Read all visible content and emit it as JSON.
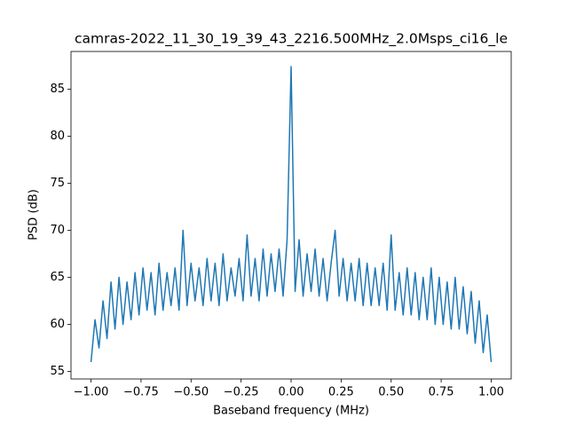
{
  "chart_data": {
    "type": "line",
    "title": "camras-2022_11_30_19_39_43_2216.500MHz_2.0Msps_ci16_le",
    "xlabel": "Baseband frequency (MHz)",
    "ylabel": "PSD (dB)",
    "x": [
      -1.0,
      -0.98,
      -0.96,
      -0.94,
      -0.92,
      -0.9,
      -0.88,
      -0.86,
      -0.84,
      -0.82,
      -0.8,
      -0.78,
      -0.76,
      -0.74,
      -0.72,
      -0.7,
      -0.68,
      -0.66,
      -0.64,
      -0.62,
      -0.6,
      -0.58,
      -0.56,
      -0.54,
      -0.52,
      -0.5,
      -0.48,
      -0.46,
      -0.44,
      -0.42,
      -0.4,
      -0.38,
      -0.36,
      -0.34,
      -0.32,
      -0.3,
      -0.28,
      -0.26,
      -0.24,
      -0.22,
      -0.2,
      -0.18,
      -0.16,
      -0.14,
      -0.12,
      -0.1,
      -0.08,
      -0.06,
      -0.04,
      -0.02,
      0,
      0.02,
      0.04,
      0.06,
      0.08,
      0.1,
      0.12,
      0.14,
      0.16,
      0.18,
      0.2,
      0.22,
      0.24,
      0.26,
      0.28,
      0.3,
      0.32,
      0.34,
      0.36,
      0.38,
      0.4,
      0.42,
      0.44,
      0.46,
      0.48,
      0.5,
      0.52,
      0.54,
      0.56,
      0.58,
      0.6,
      0.62,
      0.64,
      0.66,
      0.68,
      0.7,
      0.72,
      0.74,
      0.76,
      0.78,
      0.8,
      0.82,
      0.84,
      0.86,
      0.88,
      0.9,
      0.92,
      0.94,
      0.96,
      0.98,
      1.0
    ],
    "series": [
      {
        "color": "#1f77b4",
        "values": [
          56.0,
          60.5,
          57.5,
          62.5,
          58.5,
          64.5,
          59.5,
          65.0,
          60.0,
          64.5,
          60.5,
          65.5,
          61.0,
          66.0,
          61.5,
          65.5,
          61.0,
          66.5,
          61.5,
          65.5,
          62.0,
          66.0,
          61.5,
          70.0,
          62.0,
          66.5,
          62.5,
          66.0,
          62.0,
          67.0,
          62.5,
          66.5,
          62.0,
          67.5,
          62.5,
          66.0,
          63.0,
          67.0,
          62.5,
          69.5,
          63.0,
          67.0,
          62.5,
          68.0,
          63.0,
          67.5,
          63.5,
          68.0,
          63.0,
          69.0,
          87.4,
          63.5,
          69.0,
          63.0,
          67.5,
          63.5,
          68.0,
          63.0,
          67.0,
          62.5,
          66.5,
          70.0,
          63.0,
          67.0,
          62.5,
          66.5,
          62.5,
          67.0,
          62.0,
          66.5,
          62.0,
          66.0,
          62.0,
          66.5,
          61.5,
          69.5,
          61.5,
          65.5,
          61.0,
          66.0,
          61.0,
          65.5,
          60.5,
          65.0,
          60.5,
          66.0,
          60.0,
          65.0,
          60.0,
          64.5,
          59.5,
          65.0,
          59.5,
          64.0,
          59.0,
          63.5,
          58.0,
          62.5,
          57.0,
          61.0,
          56.0
        ]
      }
    ],
    "xlim": [
      -1.1,
      1.1
    ],
    "ylim": [
      54.2,
      89.0
    ],
    "xticks": [
      {
        "value": -1.0,
        "label": "−1.00"
      },
      {
        "value": -0.75,
        "label": "−0.75"
      },
      {
        "value": -0.5,
        "label": "−0.50"
      },
      {
        "value": -0.25,
        "label": "−0.25"
      },
      {
        "value": 0,
        "label": "0.00"
      },
      {
        "value": 0.25,
        "label": "0.25"
      },
      {
        "value": 0.5,
        "label": "0.50"
      },
      {
        "value": 0.75,
        "label": "0.75"
      },
      {
        "value": 1.0,
        "label": "1.00"
      }
    ],
    "yticks": [
      55,
      60,
      65,
      70,
      75,
      80,
      85
    ],
    "grid": false
  }
}
